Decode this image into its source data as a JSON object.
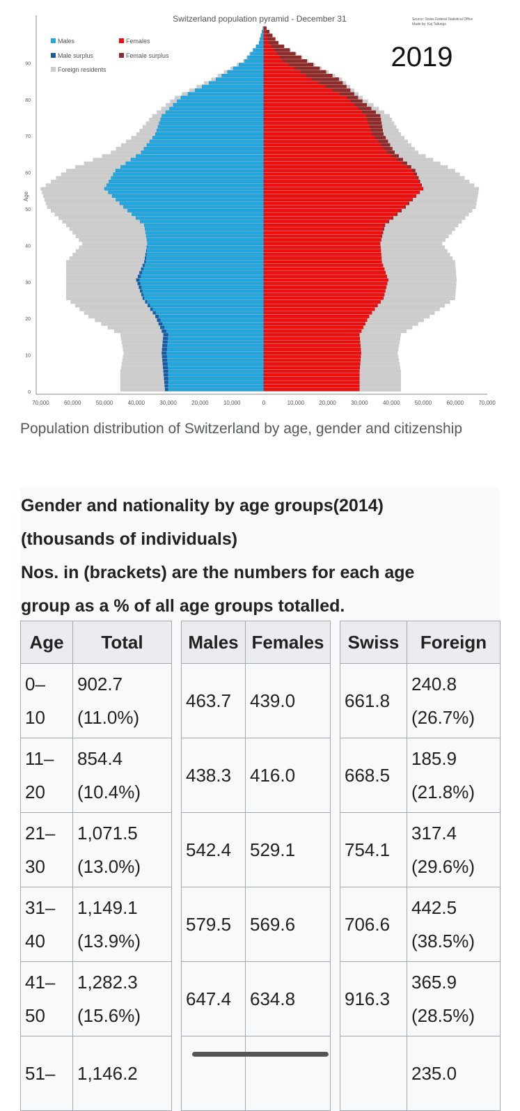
{
  "chart_data": {
    "type": "bar",
    "title": "Switzerland population pyramid - December 31",
    "source_line1": "Source: Swiss Federal Statistical Office",
    "source_line2": "Made by: Kaj Tallungs",
    "year": "2019",
    "ylabel": "Age",
    "xlim": [
      -70000,
      70000
    ],
    "ylim": [
      0,
      100
    ],
    "x_ticks": [
      "70,000",
      "60,000",
      "50,000",
      "40,000",
      "30,000",
      "20,000",
      "10,000",
      "0",
      "10,000",
      "20,000",
      "30,000",
      "40,000",
      "50,000",
      "60,000",
      "70,000"
    ],
    "y_ticks": [
      "0",
      "10",
      "20",
      "30",
      "40",
      "50",
      "60",
      "70",
      "80",
      "90"
    ],
    "legend": [
      "Males",
      "Male surplus",
      "Foreign residents",
      "Females",
      "Female surplus"
    ],
    "legend_placement": "top-left",
    "colors": {
      "males": "#1ea7e1",
      "male_surplus": "#1a5aa0",
      "females": "#f20c0c",
      "female_surplus": "#8a2c2c",
      "foreign": "#cccccc"
    },
    "ages": [
      0,
      5,
      10,
      15,
      20,
      25,
      30,
      35,
      40,
      45,
      50,
      55,
      60,
      65,
      70,
      75,
      80,
      85,
      90,
      95,
      99
    ],
    "males": [
      31000,
      31500,
      32000,
      31500,
      34000,
      38000,
      40000,
      37500,
      36500,
      37500,
      44000,
      50000,
      46500,
      38500,
      34000,
      32000,
      26000,
      15000,
      6000,
      1500,
      300
    ],
    "females": [
      30000,
      30000,
      30500,
      30000,
      33000,
      37500,
      39000,
      37000,
      36500,
      38000,
      44500,
      50000,
      47500,
      41000,
      37500,
      36500,
      29500,
      23500,
      13500,
      4500,
      800
    ],
    "foreign_left": [
      45000,
      45000,
      44000,
      45000,
      55000,
      62000,
      62000,
      62000,
      57000,
      62000,
      68000,
      70000,
      62000,
      48000,
      40000,
      35000,
      28000,
      16500,
      6500,
      1600,
      300
    ],
    "foreign_right": [
      43000,
      43000,
      42000,
      43000,
      52000,
      60000,
      60500,
      60000,
      56000,
      61000,
      66500,
      67500,
      60000,
      48500,
      43000,
      39500,
      31000,
      24500,
      14000,
      4700,
      800
    ]
  },
  "caption": "Population distribution of Switzerland by age, gender and citizenship",
  "table": {
    "caption_line1": "Gender and nationality by age groups(2014)",
    "caption_line2": "(thousands of individuals)",
    "caption_line3": "Nos. in (brackets) are the numbers for each age",
    "caption_line4": "group as a % of all age groups totalled.",
    "headers": {
      "age": "Age",
      "total": "Total",
      "males": "Males",
      "females": "Females",
      "swiss": "Swiss",
      "foreign": "Foreign"
    },
    "rows": [
      {
        "age_a": "0–",
        "age_b": "10",
        "total_a": "902.7",
        "total_b": "(11.0%)",
        "males": "463.7",
        "females": "439.0",
        "swiss": "661.8",
        "foreign_a": "240.8",
        "foreign_b": "(26.7%)"
      },
      {
        "age_a": "11–",
        "age_b": "20",
        "total_a": "854.4",
        "total_b": "(10.4%)",
        "males": "438.3",
        "females": "416.0",
        "swiss": "668.5",
        "foreign_a": "185.9",
        "foreign_b": "(21.8%)"
      },
      {
        "age_a": "21–",
        "age_b": "30",
        "total_a": "1,071.5",
        "total_b": "(13.0%)",
        "males": "542.4",
        "females": "529.1",
        "swiss": "754.1",
        "foreign_a": "317.4",
        "foreign_b": "(29.6%)"
      },
      {
        "age_a": "31–",
        "age_b": "40",
        "total_a": "1,149.1",
        "total_b": "(13.9%)",
        "males": "579.5",
        "females": "569.6",
        "swiss": "706.6",
        "foreign_a": "442.5",
        "foreign_b": "(38.5%)"
      },
      {
        "age_a": "41–",
        "age_b": "50",
        "total_a": "1,282.3",
        "total_b": "(15.6%)",
        "males": "647.4",
        "females": "634.8",
        "swiss": "916.3",
        "foreign_a": "365.9",
        "foreign_b": "(28.5%)"
      },
      {
        "age_a": "51–",
        "age_b": "",
        "total_a": "1,146.2",
        "total_b": "",
        "males": "",
        "females": "",
        "swiss": "",
        "foreign_a": "235.0",
        "foreign_b": ""
      }
    ]
  }
}
